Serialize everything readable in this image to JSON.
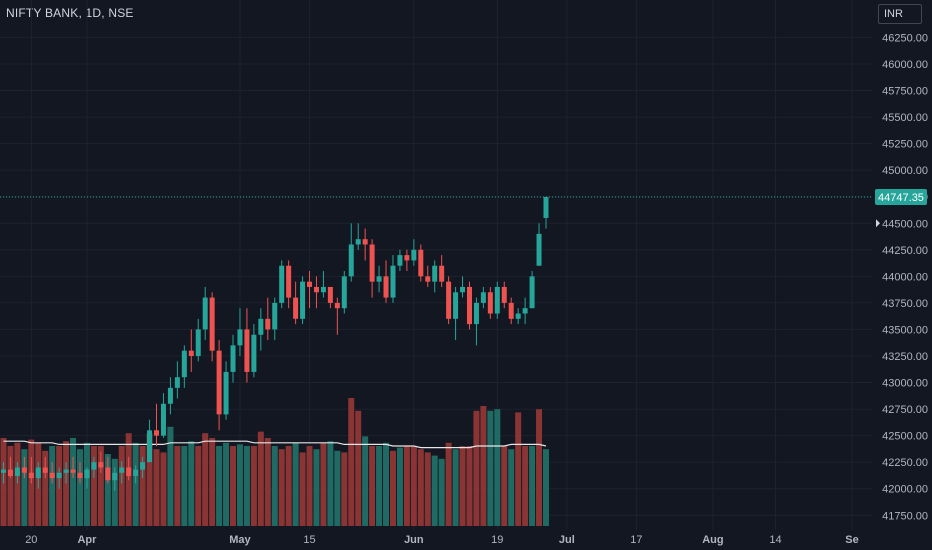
{
  "header": {
    "title": "NIFTY BANK, 1D, NSE",
    "currency": "INR"
  },
  "colors": {
    "bg": "#131722",
    "grid": "#1e222d",
    "up": "#26a69a",
    "down": "#ef5350",
    "up_volume": "#1f6b64",
    "down_volume": "#8a3434",
    "volume_ma": "#e6e6e6",
    "last_price_line": "#26a69a",
    "axis_text": "#b2b5be"
  },
  "chart_data": {
    "type": "candlestick",
    "symbol": "NIFTY BANK",
    "interval": "1D",
    "exchange": "NSE",
    "last_price": 44747.35,
    "last_price_label": "44747.35",
    "y_ticks": [
      "46250.00",
      "46000.00",
      "45750.00",
      "45500.00",
      "45250.00",
      "45000.00",
      "44750.00",
      "44500.00",
      "44250.00",
      "44000.00",
      "43750.00",
      "43500.00",
      "43250.00",
      "43000.00",
      "42750.00",
      "42500.00",
      "42250.00",
      "42000.00",
      "41750.00"
    ],
    "y_range": [
      41630,
      46320
    ],
    "x_ticks": [
      {
        "label": "20",
        "index": 4
      },
      {
        "label": "Apr",
        "index": 12,
        "bold": true
      },
      {
        "label": "May",
        "index": 34,
        "bold": true
      },
      {
        "label": "15",
        "index": 44
      },
      {
        "label": "Jun",
        "index": 59,
        "bold": true
      },
      {
        "label": "19",
        "index": 71
      },
      {
        "label": "Jul",
        "index": 81,
        "bold": true
      },
      {
        "label": "17",
        "index": 91
      },
      {
        "label": "Aug",
        "index": 102,
        "bold": true
      },
      {
        "label": "14",
        "index": 111
      },
      {
        "label": "Se",
        "index": 122,
        "bold": true
      }
    ],
    "candles": [
      [
        42150,
        42250,
        42050,
        42180
      ],
      [
        42180,
        42300,
        42100,
        42120
      ],
      [
        42120,
        42250,
        42050,
        42200
      ],
      [
        42200,
        42300,
        42100,
        42150
      ],
      [
        42150,
        42300,
        42050,
        42100
      ],
      [
        42100,
        42250,
        42000,
        42200
      ],
      [
        42200,
        42300,
        42100,
        42150
      ],
      [
        42150,
        42250,
        42050,
        42100
      ],
      [
        42100,
        42200,
        42000,
        42150
      ],
      [
        42150,
        42250,
        42050,
        42180
      ],
      [
        42180,
        42300,
        42100,
        42150
      ],
      [
        42150,
        42250,
        42050,
        42100
      ],
      [
        42100,
        42200,
        42000,
        42180
      ],
      [
        42180,
        42300,
        42100,
        42250
      ],
      [
        42250,
        42350,
        42150,
        42200
      ],
      [
        42200,
        42300,
        42050,
        42080
      ],
      [
        42080,
        42200,
        41980,
        42150
      ],
      [
        42150,
        42260,
        42050,
        42200
      ],
      [
        42200,
        42300,
        42080,
        42120
      ],
      [
        42120,
        42220,
        42050,
        42180
      ],
      [
        42180,
        42300,
        42100,
        42250
      ],
      [
        42250,
        42650,
        42250,
        42550
      ],
      [
        42550,
        42800,
        42400,
        42500
      ],
      [
        42500,
        42900,
        42480,
        42800
      ],
      [
        42800,
        43050,
        42700,
        42950
      ],
      [
        42950,
        43200,
        42850,
        43050
      ],
      [
        43050,
        43350,
        42950,
        43300
      ],
      [
        43300,
        43500,
        43100,
        43250
      ],
      [
        43250,
        43600,
        43200,
        43500
      ],
      [
        43500,
        43900,
        43400,
        43800
      ],
      [
        43800,
        43850,
        43200,
        43300
      ],
      [
        43300,
        43400,
        42550,
        42700
      ],
      [
        42700,
        43200,
        42650,
        43100
      ],
      [
        43100,
        43450,
        43000,
        43350
      ],
      [
        43350,
        43700,
        43250,
        43500
      ],
      [
        43500,
        43700,
        43000,
        43100
      ],
      [
        43100,
        43550,
        43050,
        43450
      ],
      [
        43450,
        43700,
        43300,
        43600
      ],
      [
        43600,
        43800,
        43400,
        43500
      ],
      [
        43500,
        43800,
        43400,
        43750
      ],
      [
        43750,
        44150,
        43700,
        44100
      ],
      [
        44100,
        44150,
        43700,
        43800
      ],
      [
        43800,
        43950,
        43550,
        43600
      ],
      [
        43600,
        44000,
        43550,
        43950
      ],
      [
        43950,
        44050,
        43700,
        43900
      ],
      [
        43900,
        44000,
        43700,
        43850
      ],
      [
        43850,
        44050,
        43800,
        43900
      ],
      [
        43900,
        43900,
        43700,
        43750
      ],
      [
        43750,
        43800,
        43450,
        43700
      ],
      [
        43700,
        44050,
        43650,
        44000
      ],
      [
        44000,
        44500,
        43950,
        44300
      ],
      [
        44300,
        44500,
        44250,
        44350
      ],
      [
        44350,
        44450,
        44150,
        44300
      ],
      [
        44300,
        44350,
        43800,
        43950
      ],
      [
        43950,
        44100,
        43850,
        44000
      ],
      [
        44000,
        44150,
        43750,
        43800
      ],
      [
        43800,
        44200,
        43750,
        44100
      ],
      [
        44100,
        44250,
        44050,
        44200
      ],
      [
        44200,
        44250,
        44050,
        44150
      ],
      [
        44150,
        44350,
        44100,
        44250
      ],
      [
        44250,
        44300,
        43950,
        44000
      ],
      [
        44000,
        44100,
        43900,
        43950
      ],
      [
        43950,
        44150,
        43850,
        44100
      ],
      [
        44100,
        44200,
        43900,
        43950
      ],
      [
        43950,
        44000,
        43550,
        43600
      ],
      [
        43600,
        43900,
        43400,
        43850
      ],
      [
        43850,
        44000,
        43800,
        43900
      ],
      [
        43900,
        43950,
        43500,
        43550
      ],
      [
        43550,
        43800,
        43350,
        43750
      ],
      [
        43750,
        43900,
        43700,
        43850
      ],
      [
        43850,
        43900,
        43600,
        43650
      ],
      [
        43650,
        43950,
        43600,
        43900
      ],
      [
        43900,
        43950,
        43700,
        43750
      ],
      [
        43750,
        43800,
        43550,
        43600
      ],
      [
        43600,
        43700,
        43550,
        43650
      ],
      [
        43650,
        43800,
        43550,
        43700
      ],
      [
        43700,
        44050,
        43700,
        44000
      ],
      [
        44100,
        44500,
        44100,
        44400
      ],
      [
        44550,
        44750,
        44450,
        44747
      ]
    ],
    "volumes": [
      [
        55,
        "down"
      ],
      [
        50,
        "down"
      ],
      [
        52,
        "down"
      ],
      [
        48,
        "up"
      ],
      [
        54,
        "down"
      ],
      [
        52,
        "down"
      ],
      [
        47,
        "down"
      ],
      [
        50,
        "up"
      ],
      [
        50,
        "down"
      ],
      [
        53,
        "down"
      ],
      [
        55,
        "up"
      ],
      [
        48,
        "up"
      ],
      [
        52,
        "up"
      ],
      [
        50,
        "down"
      ],
      [
        50,
        "down"
      ],
      [
        45,
        "up"
      ],
      [
        42,
        "up"
      ],
      [
        50,
        "down"
      ],
      [
        58,
        "down"
      ],
      [
        52,
        "up"
      ],
      [
        50,
        "down"
      ],
      [
        58,
        "down"
      ],
      [
        48,
        "down"
      ],
      [
        46,
        "down"
      ],
      [
        62,
        "up"
      ],
      [
        50,
        "down"
      ],
      [
        50,
        "up"
      ],
      [
        53,
        "up"
      ],
      [
        50,
        "down"
      ],
      [
        58,
        "down"
      ],
      [
        55,
        "down"
      ],
      [
        50,
        "up"
      ],
      [
        52,
        "up"
      ],
      [
        50,
        "down"
      ],
      [
        51,
        "up"
      ],
      [
        50,
        "up"
      ],
      [
        50,
        "down"
      ],
      [
        59,
        "down"
      ],
      [
        55,
        "down"
      ],
      [
        50,
        "up"
      ],
      [
        48,
        "down"
      ],
      [
        50,
        "down"
      ],
      [
        52,
        "up"
      ],
      [
        46,
        "down"
      ],
      [
        50,
        "down"
      ],
      [
        48,
        "up"
      ],
      [
        52,
        "down"
      ],
      [
        53,
        "up"
      ],
      [
        47,
        "up"
      ],
      [
        46,
        "down"
      ],
      [
        80,
        "down"
      ],
      [
        72,
        "down"
      ],
      [
        56,
        "up"
      ],
      [
        50,
        "down"
      ],
      [
        50,
        "up"
      ],
      [
        52,
        "up"
      ],
      [
        47,
        "down"
      ],
      [
        49,
        "up"
      ],
      [
        50,
        "down"
      ],
      [
        50,
        "down"
      ],
      [
        48,
        "down"
      ],
      [
        46,
        "down"
      ],
      [
        44,
        "up"
      ],
      [
        42,
        "up"
      ],
      [
        52,
        "down"
      ],
      [
        48,
        "up"
      ],
      [
        50,
        "down"
      ],
      [
        50,
        "down"
      ],
      [
        72,
        "down"
      ],
      [
        75,
        "down"
      ],
      [
        72,
        "up"
      ],
      [
        73,
        "up"
      ],
      [
        50,
        "down"
      ],
      [
        48,
        "up"
      ],
      [
        71,
        "down"
      ],
      [
        50,
        "down"
      ],
      [
        50,
        "up"
      ],
      [
        73,
        "down"
      ],
      [
        48,
        "up"
      ]
    ],
    "volume_ma": [
      53,
      53,
      53,
      53,
      52,
      52,
      52,
      52,
      51,
      51,
      51,
      51,
      51,
      51,
      51,
      51,
      51,
      51,
      51,
      51,
      51,
      51,
      51,
      51,
      52,
      52,
      52,
      52,
      52,
      53,
      53,
      53,
      53,
      53,
      53,
      53,
      52,
      52,
      52,
      52,
      52,
      52,
      52,
      52,
      52,
      52,
      52,
      52,
      52,
      51,
      51,
      51,
      51,
      51,
      51,
      51,
      50,
      50,
      50,
      50,
      49,
      49,
      49,
      49,
      49,
      49,
      49,
      49,
      50,
      50,
      50,
      50,
      50,
      51,
      51,
      51,
      51,
      51,
      50
    ]
  }
}
